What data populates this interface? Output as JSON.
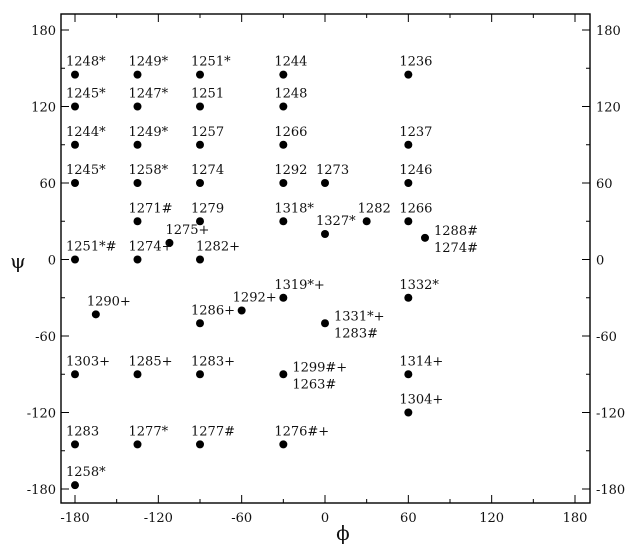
{
  "chart_data": {
    "type": "scatter",
    "title": "",
    "xlabel": "ϕ",
    "ylabel": "ψ",
    "xlim": [
      -180,
      180
    ],
    "ylim": [
      -180,
      180
    ],
    "xticks": [
      -180,
      -120,
      -60,
      0,
      60,
      120,
      180
    ],
    "yticks": [
      -180,
      -120,
      -60,
      0,
      60,
      120,
      180
    ],
    "xtick_labels": [
      "-180",
      "-120",
      "-60",
      "0",
      "60",
      "120",
      "180"
    ],
    "ytick_labels": [
      "-180",
      "-120",
      "-60",
      "0",
      "60",
      "120",
      "180"
    ],
    "grid": false,
    "points": [
      {
        "x": -180,
        "y": 145,
        "labels": [
          "1248*"
        ],
        "label_pos": "above"
      },
      {
        "x": -135,
        "y": 145,
        "labels": [
          "1249*"
        ],
        "label_pos": "above"
      },
      {
        "x": -90,
        "y": 145,
        "labels": [
          "1251*"
        ],
        "label_pos": "above"
      },
      {
        "x": -30,
        "y": 145,
        "labels": [
          "1244"
        ],
        "label_pos": "above"
      },
      {
        "x": 60,
        "y": 145,
        "labels": [
          "1236"
        ],
        "label_pos": "above"
      },
      {
        "x": -180,
        "y": 120,
        "labels": [
          "1245*"
        ],
        "label_pos": "above"
      },
      {
        "x": -135,
        "y": 120,
        "labels": [
          "1247*"
        ],
        "label_pos": "above"
      },
      {
        "x": -90,
        "y": 120,
        "labels": [
          "1251"
        ],
        "label_pos": "above"
      },
      {
        "x": -30,
        "y": 120,
        "labels": [
          "1248"
        ],
        "label_pos": "above"
      },
      {
        "x": -180,
        "y": 90,
        "labels": [
          "1244*"
        ],
        "label_pos": "above"
      },
      {
        "x": -135,
        "y": 90,
        "labels": [
          "1249*"
        ],
        "label_pos": "above"
      },
      {
        "x": -90,
        "y": 90,
        "labels": [
          "1257"
        ],
        "label_pos": "above"
      },
      {
        "x": -30,
        "y": 90,
        "labels": [
          "1266"
        ],
        "label_pos": "above"
      },
      {
        "x": 60,
        "y": 90,
        "labels": [
          "1237"
        ],
        "label_pos": "above"
      },
      {
        "x": -180,
        "y": 60,
        "labels": [
          "1245*"
        ],
        "label_pos": "above"
      },
      {
        "x": -135,
        "y": 60,
        "labels": [
          "1258*"
        ],
        "label_pos": "above"
      },
      {
        "x": -90,
        "y": 60,
        "labels": [
          "1274"
        ],
        "label_pos": "above"
      },
      {
        "x": -30,
        "y": 60,
        "labels": [
          "1292"
        ],
        "label_pos": "above"
      },
      {
        "x": 0,
        "y": 60,
        "labels": [
          "1273"
        ],
        "label_pos": "above"
      },
      {
        "x": 60,
        "y": 60,
        "labels": [
          "1246"
        ],
        "label_pos": "above"
      },
      {
        "x": -135,
        "y": 30,
        "labels": [
          "1271#"
        ],
        "label_pos": "above"
      },
      {
        "x": -90,
        "y": 30,
        "labels": [
          "1279"
        ],
        "label_pos": "above"
      },
      {
        "x": -30,
        "y": 30,
        "labels": [
          "1318*"
        ],
        "label_pos": "above"
      },
      {
        "x": 0,
        "y": 20,
        "labels": [
          "1327*"
        ],
        "label_pos": "above"
      },
      {
        "x": 30,
        "y": 30,
        "labels": [
          "1282"
        ],
        "label_pos": "above"
      },
      {
        "x": 60,
        "y": 30,
        "labels": [
          "1266"
        ],
        "label_pos": "above"
      },
      {
        "x": 72,
        "y": 17,
        "labels": [
          "1288#",
          "1274#"
        ],
        "label_pos": "right"
      },
      {
        "x": -112,
        "y": 13,
        "labels": [
          "1275+"
        ],
        "label_pos": "above-right"
      },
      {
        "x": -180,
        "y": 0,
        "labels": [
          "1251*#"
        ],
        "label_pos": "above"
      },
      {
        "x": -135,
        "y": 0,
        "labels": [
          "1274+"
        ],
        "label_pos": "above"
      },
      {
        "x": -90,
        "y": 0,
        "labels": [
          "1282+"
        ],
        "label_pos": "above-right"
      },
      {
        "x": -30,
        "y": -30,
        "labels": [
          "1319*+"
        ],
        "label_pos": "above"
      },
      {
        "x": 60,
        "y": -30,
        "labels": [
          "1332*"
        ],
        "label_pos": "above"
      },
      {
        "x": -165,
        "y": -43,
        "labels": [
          "1290+"
        ],
        "label_pos": "above"
      },
      {
        "x": -60,
        "y": -40,
        "labels": [
          "1292+"
        ],
        "label_pos": "above"
      },
      {
        "x": -90,
        "y": -50,
        "labels": [
          "1286+"
        ],
        "label_pos": "above"
      },
      {
        "x": 0,
        "y": -50,
        "labels": [
          "1331*+",
          "1283#"
        ],
        "label_pos": "right"
      },
      {
        "x": -180,
        "y": -90,
        "labels": [
          "1303+"
        ],
        "label_pos": "above"
      },
      {
        "x": -135,
        "y": -90,
        "labels": [
          "1285+"
        ],
        "label_pos": "above"
      },
      {
        "x": -90,
        "y": -90,
        "labels": [
          "1283+"
        ],
        "label_pos": "above"
      },
      {
        "x": -30,
        "y": -90,
        "labels": [
          "1299#+",
          "1263#"
        ],
        "label_pos": "right"
      },
      {
        "x": 60,
        "y": -90,
        "labels": [
          "1314+"
        ],
        "label_pos": "above"
      },
      {
        "x": 60,
        "y": -120,
        "labels": [
          "1304+"
        ],
        "label_pos": "above"
      },
      {
        "x": -180,
        "y": -145,
        "labels": [
          "1283"
        ],
        "label_pos": "above"
      },
      {
        "x": -135,
        "y": -145,
        "labels": [
          "1277*"
        ],
        "label_pos": "above"
      },
      {
        "x": -90,
        "y": -145,
        "labels": [
          "1277#"
        ],
        "label_pos": "above"
      },
      {
        "x": -30,
        "y": -145,
        "labels": [
          "1276#+"
        ],
        "label_pos": "above"
      },
      {
        "x": -180,
        "y": -177,
        "labels": [
          "1258*"
        ],
        "label_pos": "above"
      }
    ]
  }
}
